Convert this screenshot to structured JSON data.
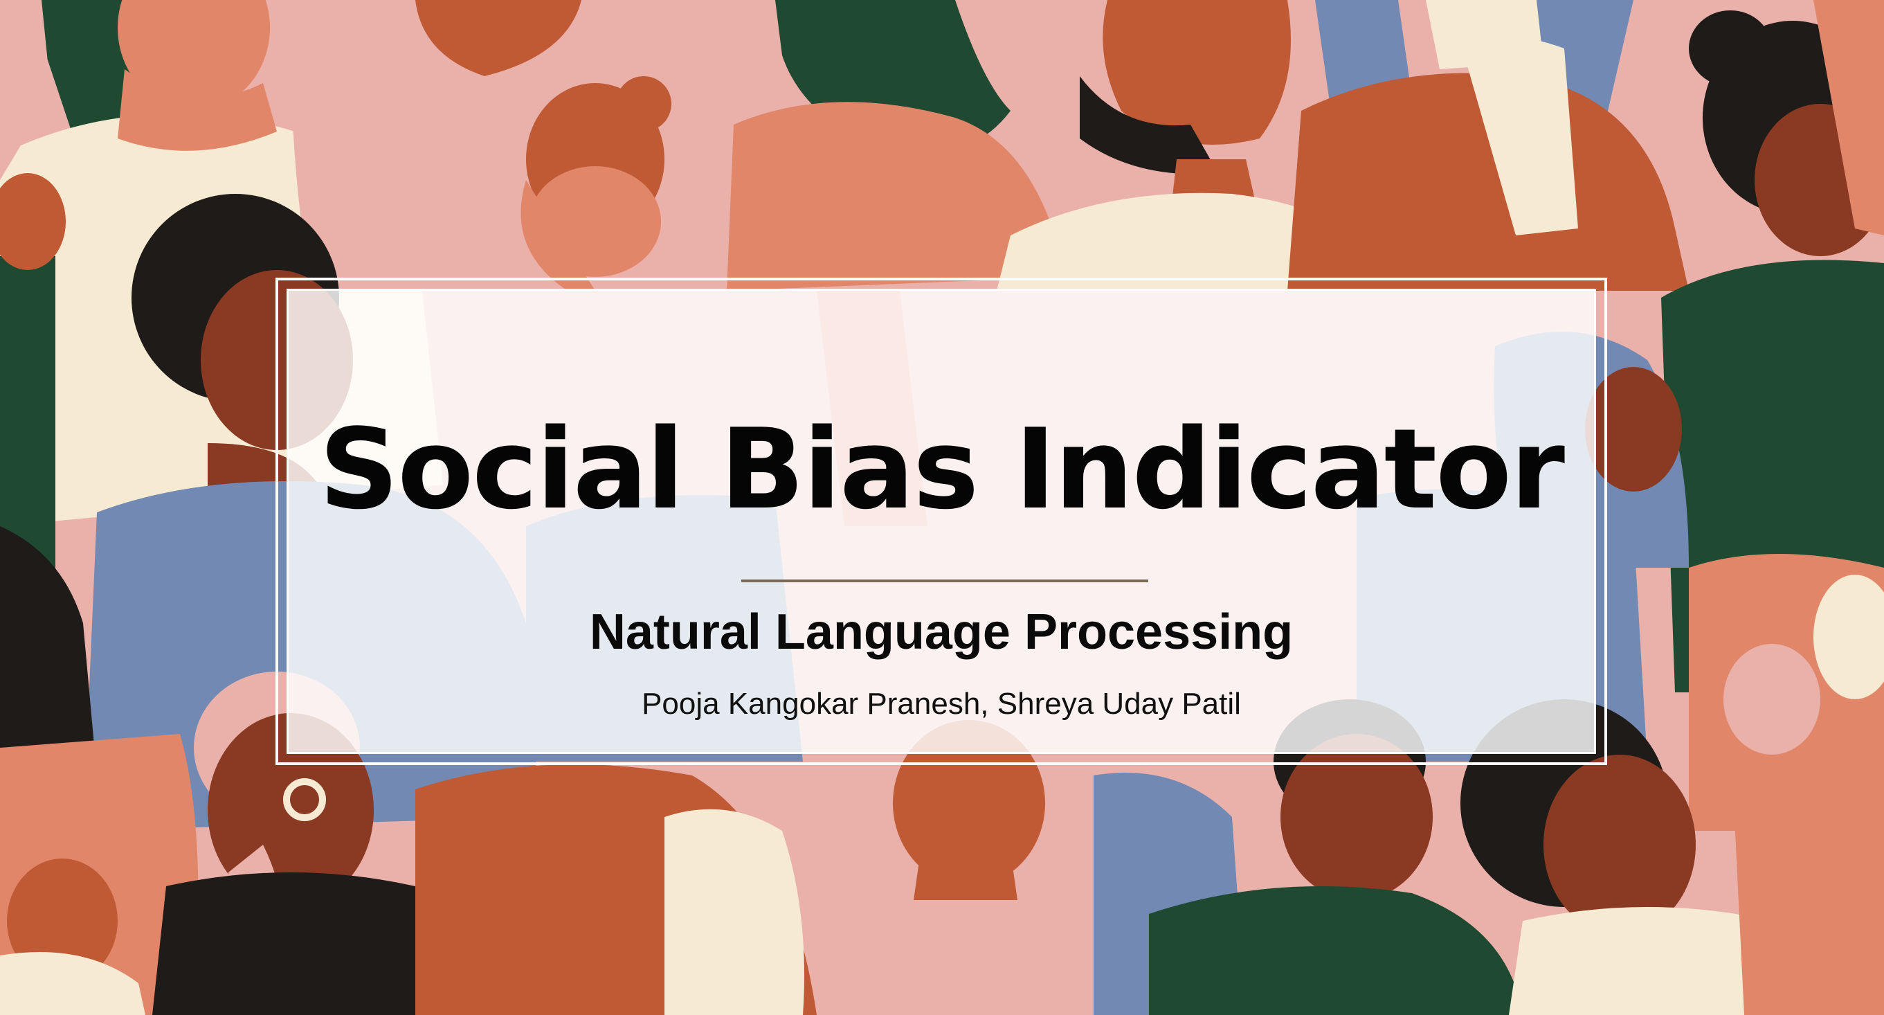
{
  "slide": {
    "title": "Social Bias Indicator",
    "subtitle": "Natural Language Processing",
    "authors": "Pooja Kangokar Pranesh, Shreya Uday Patil"
  },
  "colors": {
    "background_pink": "#eab0aa",
    "terracotta": "#c05a35",
    "salmon": "#e2866a",
    "blue": "#7189b3",
    "green": "#1f4a31",
    "cream": "#f6ead3",
    "dark": "#1e1b18",
    "brown": "#8a3a22",
    "divider": "#7b6a55"
  }
}
